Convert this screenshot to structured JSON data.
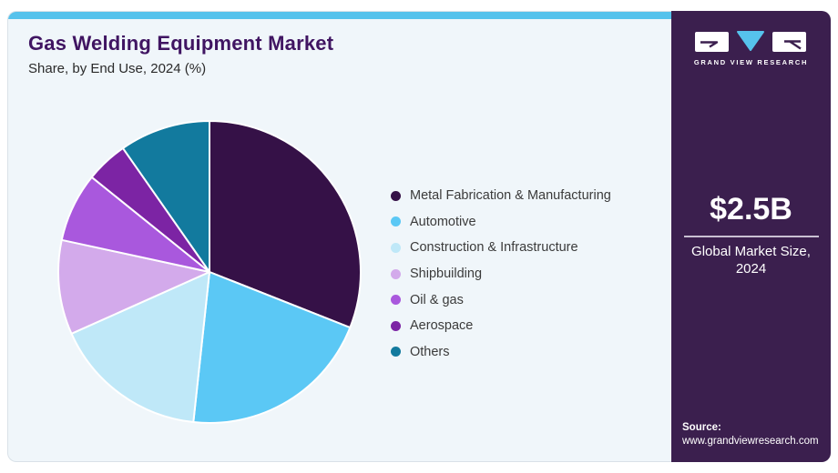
{
  "page": {
    "title": "Gas Welding Equipment Market",
    "subtitle": "Share, by End Use, 2024 (%)"
  },
  "theme": {
    "accent": "#56c2ec",
    "card_bg": "#f0f6fa",
    "card_border": "#d9e1e8",
    "sidebar_bg": "#3b1f4e",
    "title_color": "#401562"
  },
  "chart_data": {
    "type": "pie",
    "title": "Gas Welding Equipment Market Share, by End Use, 2024 (%)",
    "unit": "%",
    "start_angle_deg_from_12_oclock": 0,
    "direction": "clockwise",
    "legend_position": "right",
    "categories": [
      "Metal Fabrication & Manufacturing",
      "Automotive",
      "Construction & Infrastructure",
      "Shipbuilding",
      "Oil & gas",
      "Aerospace",
      "Others"
    ],
    "values": [
      31.0,
      20.7,
      16.6,
      10.1,
      7.4,
      4.5,
      9.7
    ],
    "colors": [
      "#351147",
      "#5bc8f5",
      "#bfe8f8",
      "#d3aaeb",
      "#a958dd",
      "#7c24a4",
      "#127a9e"
    ]
  },
  "sidebar": {
    "logo_caption": "GRAND VIEW RESEARCH",
    "market_size_value": "$2.5B",
    "market_size_label": "Global Market Size, 2024",
    "source_label": "Source:",
    "source_url": "www.grandviewresearch.com"
  }
}
